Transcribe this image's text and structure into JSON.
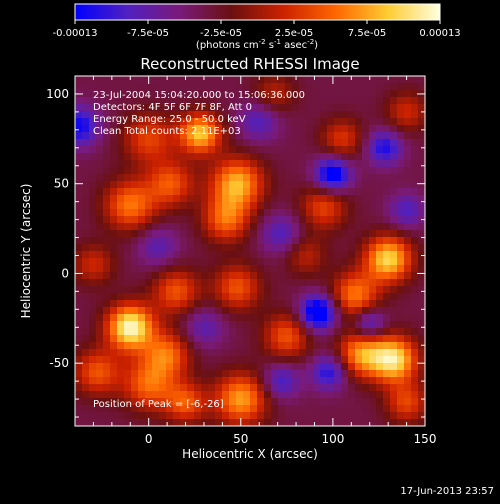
{
  "colorbar": {
    "tick_labels": [
      "-0.00013",
      "-7.5e-05",
      "-2.5e-05",
      "2.5e-05",
      "7.5e-05",
      "0.00013"
    ],
    "unit_parts": [
      "(photons cm",
      "-2",
      " s",
      "-1",
      " asec",
      "-2",
      ")"
    ],
    "colors": [
      "#0000ff",
      "#5020c0",
      "#7a1a7a",
      "#6a1010",
      "#cc2200",
      "#ff6600",
      "#ffcc33",
      "#ffffe0"
    ]
  },
  "chart_data": {
    "type": "heatmap",
    "title": "Reconstructed RHESSI Image",
    "xlabel": "Heliocentric X (arcsec)",
    "ylabel": "Heliocentric Y (arcsec)",
    "xlim": [
      -40,
      150
    ],
    "ylim": [
      -85,
      110
    ],
    "x_ticks": [
      0,
      50,
      100,
      150
    ],
    "y_ticks": [
      100,
      50,
      0,
      -50
    ],
    "value_range": [
      -0.00013,
      0.00013
    ],
    "peak": [
      -6,
      -26
    ],
    "sources": [
      {
        "x": 28,
        "y": 78,
        "amp": 0.8,
        "s": 8
      },
      {
        "x": 0,
        "y": 75,
        "amp": 0.45,
        "s": 10
      },
      {
        "x": -10,
        "y": 38,
        "amp": 0.6,
        "s": 10
      },
      {
        "x": 12,
        "y": 50,
        "amp": 0.5,
        "s": 9
      },
      {
        "x": 48,
        "y": 50,
        "amp": 0.75,
        "s": 10
      },
      {
        "x": 42,
        "y": 30,
        "amp": 0.55,
        "s": 9
      },
      {
        "x": 105,
        "y": 75,
        "amp": 0.4,
        "s": 8
      },
      {
        "x": 95,
        "y": 37,
        "amp": 0.45,
        "s": 9
      },
      {
        "x": 130,
        "y": 8,
        "amp": 0.85,
        "s": 9
      },
      {
        "x": 112,
        "y": -12,
        "amp": 0.6,
        "s": 9
      },
      {
        "x": -10,
        "y": -30,
        "amp": 1.0,
        "s": 9
      },
      {
        "x": 15,
        "y": -10,
        "amp": 0.5,
        "s": 9
      },
      {
        "x": 10,
        "y": -45,
        "amp": 0.55,
        "s": 9
      },
      {
        "x": 48,
        "y": -8,
        "amp": 0.5,
        "s": 9
      },
      {
        "x": 75,
        "y": -35,
        "amp": 0.5,
        "s": 9
      },
      {
        "x": 115,
        "y": -45,
        "amp": 0.65,
        "s": 9
      },
      {
        "x": 133,
        "y": -48,
        "amp": 0.9,
        "s": 9
      },
      {
        "x": -28,
        "y": -55,
        "amp": 0.5,
        "s": 9
      },
      {
        "x": 0,
        "y": -62,
        "amp": 0.55,
        "s": 10
      },
      {
        "x": 50,
        "y": -70,
        "amp": 0.7,
        "s": 10
      },
      {
        "x": 20,
        "y": -72,
        "amp": 0.5,
        "s": 8
      },
      {
        "x": 140,
        "y": -72,
        "amp": 0.45,
        "s": 8
      },
      {
        "x": 85,
        "y": 10,
        "amp": 0.3,
        "s": 8
      },
      {
        "x": -30,
        "y": 5,
        "amp": 0.35,
        "s": 8
      },
      {
        "x": 68,
        "y": 100,
        "amp": 0.3,
        "s": 8
      },
      {
        "x": 140,
        "y": 90,
        "amp": 0.35,
        "s": 8
      },
      {
        "x": -38,
        "y": 82,
        "amp": -0.55,
        "s": 8
      },
      {
        "x": 100,
        "y": 55,
        "amp": -0.7,
        "s": 7
      },
      {
        "x": 128,
        "y": 70,
        "amp": -0.5,
        "s": 7
      },
      {
        "x": 92,
        "y": -22,
        "amp": -0.8,
        "s": 7
      },
      {
        "x": 120,
        "y": -28,
        "amp": -0.45,
        "s": 6
      },
      {
        "x": 98,
        "y": -55,
        "amp": -0.5,
        "s": 7
      },
      {
        "x": 72,
        "y": 22,
        "amp": -0.35,
        "s": 8
      },
      {
        "x": 60,
        "y": 85,
        "amp": -0.35,
        "s": 8
      },
      {
        "x": 5,
        "y": 15,
        "amp": -0.3,
        "s": 8
      },
      {
        "x": 72,
        "y": -60,
        "amp": -0.4,
        "s": 7
      },
      {
        "x": 140,
        "y": 35,
        "amp": -0.35,
        "s": 7
      },
      {
        "x": 30,
        "y": -30,
        "amp": -0.3,
        "s": 8
      }
    ],
    "info_lines": [
      "23-Jul-2004 15:04:20.000 to 15:06:36.000",
      "Detectors: 4F 5F 6F 7F 8F, Att 0",
      "Energy Range: 25.0 - 50.0 keV",
      "Clean    Total counts: 2.11E+03"
    ],
    "peak_label": "Position of Peak = [-6,-26]",
    "timestamp": "17-Jun-2013 23:57"
  }
}
